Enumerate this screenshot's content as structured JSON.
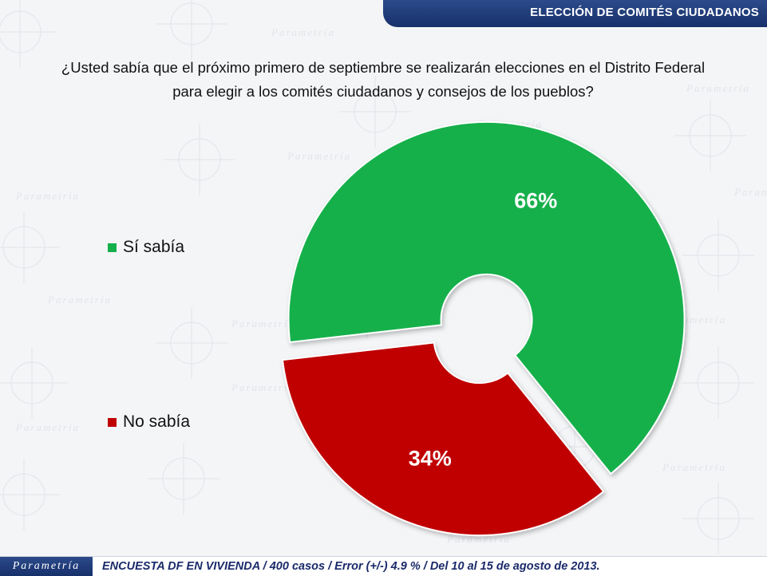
{
  "header": {
    "title": "ELECCIÓN DE COMITÉS CIUDADANOS"
  },
  "question": {
    "line1": "¿Usted sabía que el próximo primero de septiembre se realizarán elecciones en el Distrito Federal",
    "line2": "para elegir a los comités ciudadanos y consejos de los pueblos?"
  },
  "chart_data": {
    "type": "pie",
    "categories": [
      "Sí sabía",
      "No sabía"
    ],
    "values": [
      66,
      34
    ],
    "data_labels": [
      "66%",
      "34%"
    ],
    "colors": [
      "#13b04b",
      "#c00000"
    ],
    "legend_position": "left"
  },
  "footer": {
    "logo": "Parametría",
    "text": "ENCUESTA DF EN VIVIENDA / 400 casos / Error (+/-) 4.9 % / Del 10 al 15 de agosto de 2013."
  },
  "watermark": {
    "text": "Parametría"
  }
}
